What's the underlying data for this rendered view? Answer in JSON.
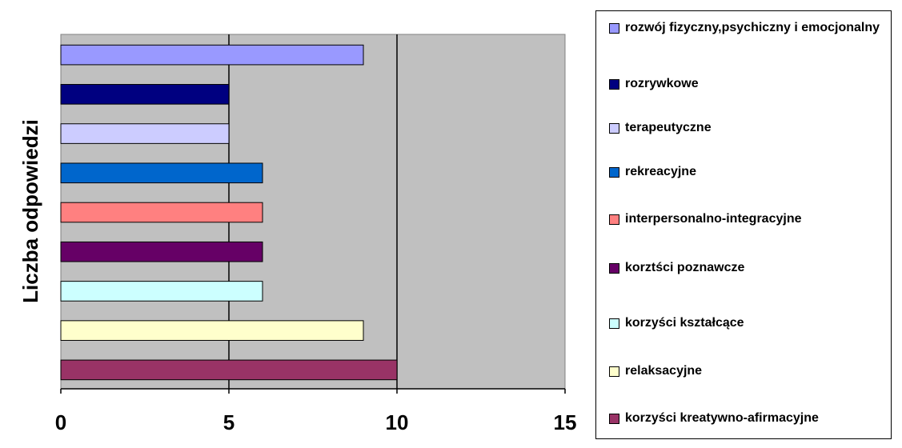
{
  "chart_data": {
    "type": "bar",
    "orientation": "horizontal",
    "ylabel": "Liczba odpowiedzi",
    "xlim": [
      0,
      15
    ],
    "x_ticks": [
      "0",
      "5",
      "10",
      "15"
    ],
    "grid": "vertical major gridlines",
    "plot_background": "#c0c0c0",
    "legend_position": "right",
    "series": [
      {
        "name": "rozwój fizyczny,psychiczny i emocjonalny",
        "value": 9,
        "color": "#9999ff"
      },
      {
        "name": "rozrywkowe",
        "value": 5,
        "color": "#000080"
      },
      {
        "name": "terapeutyczne",
        "value": 5,
        "color": "#ccccff"
      },
      {
        "name": "rekreacyjne",
        "value": 6,
        "color": "#0066cc"
      },
      {
        "name": "interpersonalno-integracyjne",
        "value": 6,
        "color": "#ff8080"
      },
      {
        "name": "korztści poznawcze",
        "value": 6,
        "color": "#660066"
      },
      {
        "name": "korzyści kształcące",
        "value": 6,
        "color": "#ccffff"
      },
      {
        "name": "relaksacyjne",
        "value": 9,
        "color": "#ffffcc"
      },
      {
        "name": "korzyści kreatywno-afirmacyjne",
        "value": 10,
        "color": "#993366"
      }
    ]
  }
}
